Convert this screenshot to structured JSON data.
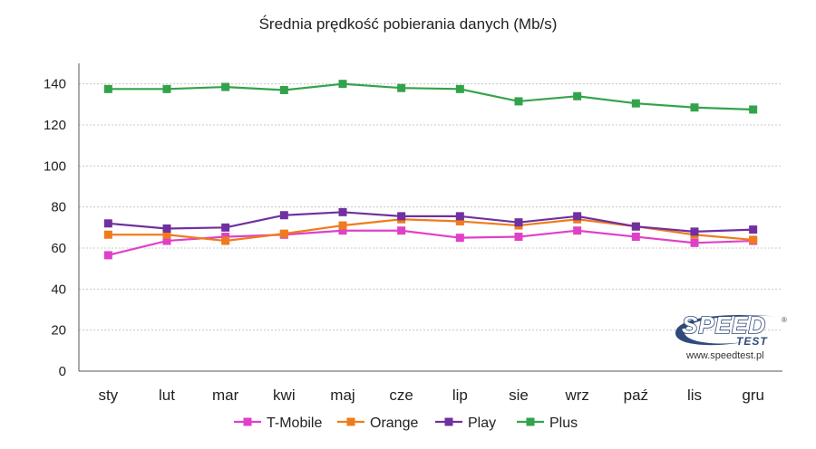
{
  "chart_data": {
    "type": "line",
    "title": "Średnia prędkość pobierania danych (Mb/s)",
    "xlabel": "",
    "ylabel": "",
    "categories": [
      "sty",
      "lut",
      "mar",
      "kwi",
      "maj",
      "cze",
      "lip",
      "sie",
      "wrz",
      "paź",
      "lis",
      "gru"
    ],
    "ylim": [
      0,
      150
    ],
    "yticks": [
      0,
      20,
      40,
      60,
      80,
      100,
      120,
      140
    ],
    "grid": true,
    "legend_position": "bottom",
    "series": [
      {
        "name": "T-Mobile",
        "color": "#e040c8",
        "values": [
          56.5,
          63.5,
          65.5,
          66.5,
          68.5,
          68.5,
          65,
          65.5,
          68.5,
          65.5,
          62.5,
          63.5
        ]
      },
      {
        "name": "Orange",
        "color": "#f07b1d",
        "values": [
          66.5,
          66.5,
          63.5,
          67,
          71,
          74,
          73,
          71,
          74,
          70.5,
          66.5,
          64
        ]
      },
      {
        "name": "Play",
        "color": "#7030a0",
        "values": [
          72,
          69.5,
          70,
          76,
          77.5,
          75.5,
          75.5,
          72.5,
          75.5,
          70.5,
          68,
          69
        ]
      },
      {
        "name": "Plus",
        "color": "#33a34b",
        "values": [
          137.5,
          137.5,
          138.5,
          137,
          140,
          138,
          137.5,
          131.5,
          134,
          130.5,
          128.5,
          127.5
        ]
      }
    ]
  },
  "logo": {
    "main": "SPEED",
    "sub": "TEST",
    "registered": "®",
    "url": "www.speedtest.pl"
  }
}
